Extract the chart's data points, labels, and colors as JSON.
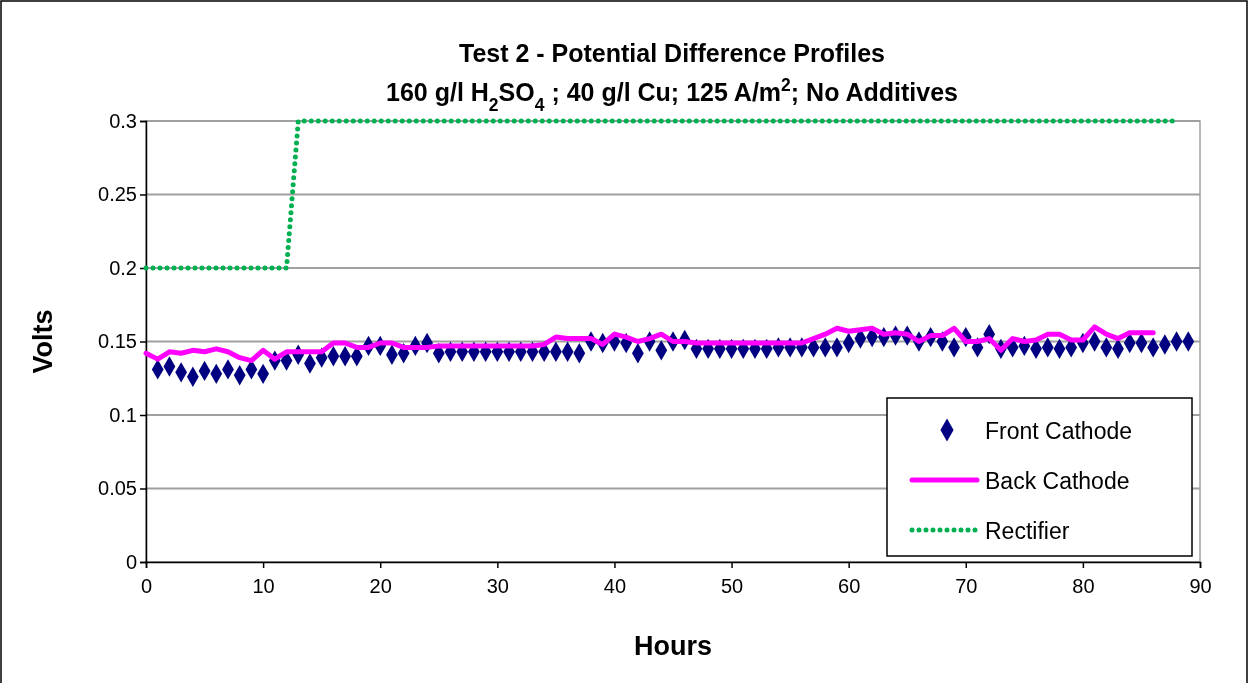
{
  "chart_data": {
    "type": "line",
    "title": "Test 2 - Potential Difference Profiles",
    "subtitle": "160 g/l H$_{2}$SO$_{4}$ ; 40 g/l Cu; 125 A/m$^{2}$; No Additives",
    "xlabel": "Hours",
    "ylabel": "Volts",
    "xlim": [
      0,
      90
    ],
    "xticks": [
      0,
      10,
      20,
      30,
      40,
      50,
      60,
      70,
      80,
      90
    ],
    "ylim": [
      0,
      0.3
    ],
    "yticks": [
      0,
      0.05,
      0.1,
      0.15,
      0.2,
      0.25,
      0.3
    ],
    "grid": "y",
    "legend": "bottom right",
    "series": [
      {
        "name": "Front Cathode",
        "type": "scatter",
        "marker": "diamond",
        "color": "#000080",
        "x": [
          1,
          2,
          3,
          4,
          5,
          6,
          7,
          8,
          9,
          10,
          11,
          12,
          13,
          14,
          15,
          16,
          17,
          18,
          19,
          20,
          21,
          22,
          23,
          24,
          25,
          26,
          27,
          28,
          29,
          30,
          31,
          32,
          33,
          34,
          35,
          36,
          37,
          38,
          39,
          40,
          41,
          42,
          43,
          44,
          45,
          46,
          47,
          48,
          49,
          50,
          51,
          52,
          53,
          54,
          55,
          56,
          57,
          58,
          59,
          60,
          61,
          62,
          63,
          64,
          65,
          66,
          67,
          68,
          69,
          70,
          71,
          72,
          73,
          74,
          75,
          76,
          77,
          78,
          79,
          80,
          81,
          82,
          83,
          84,
          85,
          86,
          87,
          88,
          89
        ],
        "values": [
          0.131,
          0.133,
          0.129,
          0.126,
          0.13,
          0.128,
          0.131,
          0.127,
          0.131,
          0.128,
          0.137,
          0.137,
          0.141,
          0.135,
          0.139,
          0.14,
          0.14,
          0.14,
          0.147,
          0.147,
          0.141,
          0.142,
          0.147,
          0.149,
          0.142,
          0.143,
          0.143,
          0.143,
          0.143,
          0.143,
          0.143,
          0.143,
          0.143,
          0.143,
          0.143,
          0.143,
          0.142,
          0.15,
          0.149,
          0.15,
          0.149,
          0.142,
          0.15,
          0.144,
          0.15,
          0.151,
          0.145,
          0.145,
          0.145,
          0.145,
          0.145,
          0.145,
          0.145,
          0.146,
          0.146,
          0.146,
          0.146,
          0.146,
          0.146,
          0.149,
          0.152,
          0.153,
          0.153,
          0.154,
          0.154,
          0.15,
          0.153,
          0.15,
          0.146,
          0.153,
          0.146,
          0.155,
          0.145,
          0.146,
          0.147,
          0.145,
          0.146,
          0.145,
          0.146,
          0.149,
          0.15,
          0.146,
          0.145,
          0.149,
          0.149,
          0.146,
          0.148,
          0.15,
          0.15
        ]
      },
      {
        "name": "Back Cathode",
        "line_style": "solid",
        "color": "#ff00ff",
        "x": [
          0,
          1,
          2,
          3,
          4,
          5,
          6,
          7,
          8,
          9,
          10,
          11,
          12,
          13,
          14,
          15,
          16,
          17,
          18,
          19,
          20,
          21,
          22,
          23,
          24,
          25,
          26,
          27,
          28,
          29,
          30,
          31,
          32,
          33,
          34,
          35,
          36,
          37,
          38,
          39,
          40,
          41,
          42,
          43,
          44,
          45,
          46,
          47,
          48,
          49,
          50,
          51,
          52,
          53,
          54,
          55,
          56,
          57,
          58,
          59,
          60,
          61,
          62,
          63,
          64,
          65,
          66,
          67,
          68,
          69,
          70,
          71,
          72,
          73,
          74,
          75,
          76,
          77,
          78,
          79,
          80,
          81,
          82,
          83,
          84,
          85,
          86
        ],
        "values": [
          0.142,
          0.138,
          0.143,
          0.142,
          0.144,
          0.143,
          0.145,
          0.143,
          0.139,
          0.137,
          0.144,
          0.138,
          0.143,
          0.143,
          0.143,
          0.143,
          0.149,
          0.149,
          0.146,
          0.146,
          0.149,
          0.149,
          0.146,
          0.146,
          0.146,
          0.147,
          0.147,
          0.147,
          0.147,
          0.147,
          0.147,
          0.147,
          0.147,
          0.147,
          0.148,
          0.153,
          0.152,
          0.152,
          0.152,
          0.148,
          0.155,
          0.153,
          0.15,
          0.152,
          0.155,
          0.15,
          0.15,
          0.149,
          0.149,
          0.149,
          0.149,
          0.149,
          0.149,
          0.149,
          0.149,
          0.149,
          0.149,
          0.152,
          0.155,
          0.159,
          0.157,
          0.158,
          0.159,
          0.155,
          0.156,
          0.155,
          0.15,
          0.154,
          0.154,
          0.159,
          0.15,
          0.15,
          0.152,
          0.144,
          0.152,
          0.15,
          0.151,
          0.155,
          0.155,
          0.151,
          0.151,
          0.16,
          0.155,
          0.152,
          0.156,
          0.156,
          0.156
        ]
      },
      {
        "name": "Rectifier",
        "line_style": "dotted",
        "color": "#00b050",
        "x": [
          0,
          12,
          13,
          88
        ],
        "values": [
          0.2,
          0.2,
          0.3,
          0.3
        ]
      }
    ]
  }
}
